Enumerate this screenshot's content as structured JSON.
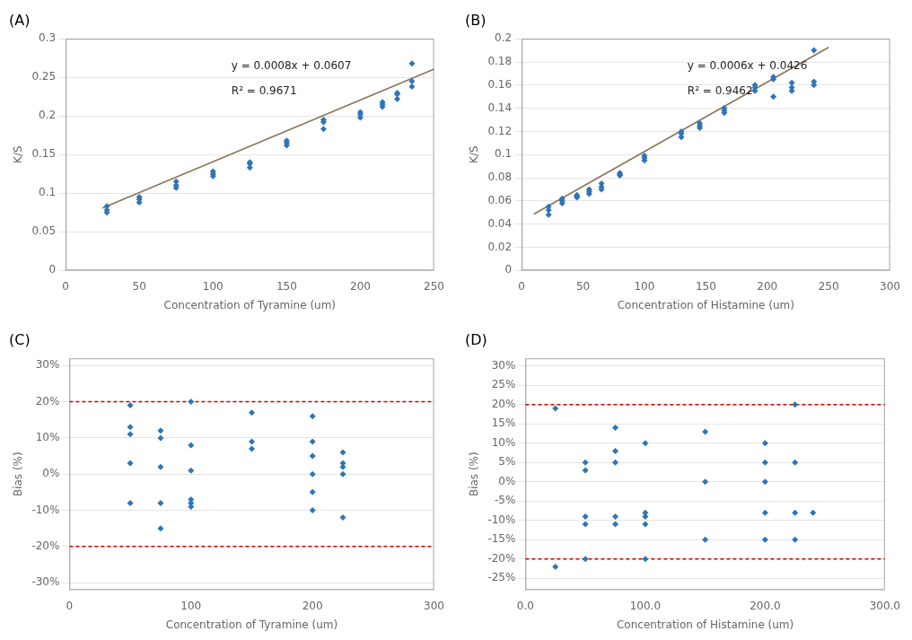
{
  "chart_data": [
    {
      "type": "scatter",
      "title": "(A)",
      "x_label": "Concentration of Tyramine (um)",
      "y_label": "K/S",
      "annotations": [
        "y = 0.0008x + 0.0607",
        "R² = 0.9671"
      ],
      "xlim": [
        0,
        250
      ],
      "ylim": [
        0,
        0.3
      ],
      "xticks": [
        0,
        50,
        100,
        150,
        200,
        250
      ],
      "yticks": [
        0,
        0.05,
        0.1,
        0.15,
        0.2,
        0.25,
        0.3
      ],
      "grid": "y",
      "series": [
        {
          "type": "scatter",
          "color": "#2E75B6",
          "marker": "diamond",
          "x": [
            28,
            28,
            28,
            50,
            50,
            50,
            75,
            75,
            75,
            100,
            100,
            100,
            125,
            125,
            125,
            150,
            150,
            150,
            175,
            175,
            175,
            200,
            200,
            200,
            215,
            215,
            215,
            225,
            225,
            225,
            235,
            235,
            235
          ],
          "values": [
            0.083,
            0.078,
            0.075,
            0.095,
            0.092,
            0.088,
            0.115,
            0.11,
            0.107,
            0.128,
            0.125,
            0.122,
            0.14,
            0.138,
            0.133,
            0.168,
            0.165,
            0.162,
            0.195,
            0.192,
            0.183,
            0.205,
            0.202,
            0.198,
            0.218,
            0.215,
            0.212,
            0.23,
            0.228,
            0.222,
            0.268,
            0.245,
            0.238
          ]
        },
        {
          "type": "line",
          "color": "#8B7355",
          "line_style": "solid",
          "x": [
            25,
            250
          ],
          "values": [
            0.0807,
            0.2607
          ]
        }
      ]
    },
    {
      "type": "scatter",
      "title": "(B)",
      "x_label": "Concentration of Histamine (um)",
      "y_label": "K/S",
      "annotations": [
        "y = 0.0006x + 0.0426",
        "R² = 0.9462"
      ],
      "xlim": [
        0,
        300
      ],
      "ylim": [
        0,
        0.2
      ],
      "xticks": [
        0,
        50,
        100,
        150,
        200,
        250,
        300
      ],
      "yticks": [
        0,
        0.02,
        0.04,
        0.06,
        0.08,
        0.1,
        0.12,
        0.14,
        0.16,
        0.18,
        0.2
      ],
      "grid": "y",
      "series": [
        {
          "type": "scatter",
          "color": "#2E75B6",
          "marker": "diamond",
          "x": [
            22,
            22,
            22,
            33,
            33,
            33,
            45,
            45,
            45,
            55,
            55,
            55,
            65,
            65,
            65,
            80,
            80,
            80,
            100,
            100,
            100,
            130,
            130,
            130,
            145,
            145,
            145,
            165,
            165,
            165,
            190,
            190,
            190,
            205,
            205,
            205,
            220,
            220,
            220,
            238,
            238,
            238
          ],
          "values": [
            0.055,
            0.052,
            0.048,
            0.062,
            0.06,
            0.058,
            0.064,
            0.063,
            0.065,
            0.068,
            0.066,
            0.07,
            0.075,
            0.072,
            0.07,
            0.082,
            0.084,
            0.083,
            0.097,
            0.099,
            0.095,
            0.118,
            0.115,
            0.12,
            0.125,
            0.127,
            0.123,
            0.14,
            0.136,
            0.138,
            0.158,
            0.155,
            0.16,
            0.167,
            0.165,
            0.15,
            0.162,
            0.158,
            0.155,
            0.19,
            0.163,
            0.16
          ]
        },
        {
          "type": "line",
          "color": "#8B7355",
          "line_style": "solid",
          "x": [
            10,
            250
          ],
          "values": [
            0.0486,
            0.1926
          ]
        }
      ]
    },
    {
      "type": "scatter",
      "title": "(C)",
      "x_label": "Concentration of Tyramine (um)",
      "y_label": "Bias (%)",
      "xlim": [
        0,
        300
      ],
      "ylim": [
        -32,
        32
      ],
      "xticks": [
        0,
        100,
        200,
        300
      ],
      "yticks": [
        {
          "value": -30,
          "label": "-30%"
        },
        {
          "value": -20,
          "label": "-20%"
        },
        {
          "value": -10,
          "label": "-10%"
        },
        {
          "value": 0,
          "label": "0%"
        },
        {
          "value": 10,
          "label": "10%"
        },
        {
          "value": 20,
          "label": "20%"
        },
        {
          "value": 30,
          "label": "30%"
        }
      ],
      "grid": "y",
      "series": [
        {
          "type": "scatter",
          "color": "#2E75B6",
          "marker": "diamond",
          "x": [
            50,
            50,
            50,
            50,
            50,
            75,
            75,
            75,
            75,
            75,
            100,
            100,
            100,
            100,
            100,
            100,
            150,
            150,
            150,
            200,
            200,
            200,
            200,
            200,
            200,
            225,
            225,
            225,
            225,
            225
          ],
          "values": [
            19,
            13,
            11,
            3,
            -8,
            12,
            10,
            2,
            -8,
            -15,
            20,
            8,
            1,
            -7,
            -8,
            -9,
            17,
            9,
            7,
            16,
            9,
            5,
            0,
            -5,
            -10,
            6,
            3,
            2,
            -12,
            0
          ]
        },
        {
          "type": "line",
          "color": "#CC0000",
          "line_style": "dashed",
          "x": [
            0,
            300
          ],
          "values": [
            20,
            20
          ]
        },
        {
          "type": "line",
          "color": "#CC0000",
          "line_style": "dashed",
          "x": [
            0,
            300
          ],
          "values": [
            -20,
            -20
          ]
        }
      ]
    },
    {
      "type": "scatter",
      "title": "(D)",
      "x_label": "Concentration of Histamine (um)",
      "y_label": "Bias (%)",
      "xlim": [
        0,
        300
      ],
      "ylim": [
        -28,
        32
      ],
      "xticks": [
        {
          "value": 0,
          "label": "0.0"
        },
        {
          "value": 100,
          "label": "100.0"
        },
        {
          "value": 200,
          "label": "200.0"
        },
        {
          "value": 300,
          "label": "300.0"
        }
      ],
      "yticks": [
        {
          "value": -25,
          "label": "-25%"
        },
        {
          "value": -20,
          "label": "-20%"
        },
        {
          "value": -15,
          "label": "-15%"
        },
        {
          "value": -10,
          "label": "-10%"
        },
        {
          "value": -5,
          "label": "-5%"
        },
        {
          "value": 0,
          "label": "0%"
        },
        {
          "value": 5,
          "label": "5%"
        },
        {
          "value": 10,
          "label": "10%"
        },
        {
          "value": 15,
          "label": "15%"
        },
        {
          "value": 20,
          "label": "20%"
        },
        {
          "value": 25,
          "label": "25%"
        },
        {
          "value": 30,
          "label": "30%"
        }
      ],
      "grid": "y",
      "series": [
        {
          "type": "scatter",
          "color": "#2E75B6",
          "marker": "diamond",
          "x": [
            25,
            25,
            50,
            50,
            50,
            50,
            50,
            75,
            75,
            75,
            75,
            75,
            100,
            100,
            100,
            100,
            100,
            150,
            150,
            150,
            200,
            200,
            200,
            200,
            200,
            225,
            225,
            225,
            225,
            240
          ],
          "values": [
            19,
            -22,
            5,
            3,
            -9,
            -11,
            -20,
            8,
            5,
            -9,
            -11,
            14,
            10,
            -8,
            -9,
            -11,
            -20,
            13,
            -15,
            0,
            10,
            5,
            0,
            -8,
            -15,
            20,
            5,
            -8,
            -15,
            -8
          ]
        },
        {
          "type": "line",
          "color": "#CC0000",
          "line_style": "dashed",
          "x": [
            0,
            300
          ],
          "values": [
            20,
            20
          ]
        },
        {
          "type": "line",
          "color": "#CC0000",
          "line_style": "dashed",
          "x": [
            0,
            300
          ],
          "values": [
            -20,
            -20
          ]
        }
      ]
    }
  ]
}
